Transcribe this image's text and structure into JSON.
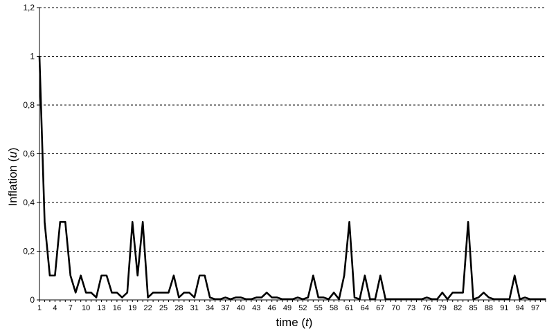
{
  "chart_data": {
    "type": "line",
    "title": "",
    "xlabel_prefix": "time (",
    "xlabel_var": "t",
    "xlabel_suffix": ")",
    "ylabel_prefix": "Inflation (",
    "ylabel_var": "u",
    "ylabel_suffix": ")",
    "ylim": [
      0,
      1.2
    ],
    "xlim": [
      1,
      99
    ],
    "y_ticks": [
      "0",
      "0,2",
      "0,4",
      "0,6",
      "0,8",
      "1",
      "1,2"
    ],
    "x_ticks": [
      "1",
      "4",
      "7",
      "10",
      "13",
      "16",
      "19",
      "22",
      "25",
      "28",
      "31",
      "34",
      "37",
      "40",
      "43",
      "46",
      "49",
      "52",
      "55",
      "58",
      "61",
      "64",
      "67",
      "70",
      "73",
      "76",
      "79",
      "82",
      "85",
      "88",
      "91",
      "94",
      "97"
    ],
    "grid": "horizontal-dashed",
    "legend": "none",
    "line_color": "#000000",
    "series": [
      {
        "x": [
          1,
          2,
          3,
          4,
          5,
          6,
          7,
          8,
          9,
          10,
          11,
          12,
          13,
          14,
          15,
          16,
          17,
          18,
          19,
          20,
          21,
          22,
          23,
          24,
          25,
          26,
          27,
          28,
          29,
          30,
          31,
          32,
          33,
          34,
          35,
          36,
          37,
          38,
          39,
          40,
          41,
          42,
          43,
          44,
          45,
          46,
          47,
          48,
          49,
          50,
          51,
          52,
          53,
          54,
          55,
          56,
          57,
          58,
          59,
          60,
          61,
          62,
          63,
          64,
          65,
          66,
          67,
          68,
          69,
          70,
          71,
          72,
          73,
          74,
          75,
          76,
          77,
          78,
          79,
          80,
          81,
          82,
          83,
          84,
          85,
          86,
          87,
          88,
          89,
          90,
          91,
          92,
          93,
          94,
          95,
          96,
          97,
          98,
          99
        ],
        "values": [
          1,
          0.32,
          0.1,
          0.1,
          0.32,
          0.32,
          0.1,
          0.03,
          0.1,
          0.03,
          0.03,
          0.01,
          0.1,
          0.1,
          0.03,
          0.03,
          0.01,
          0.03,
          0.32,
          0.1,
          0.32,
          0.01,
          0.03,
          0.03,
          0.03,
          0.03,
          0.1,
          0.01,
          0.03,
          0.03,
          0.01,
          0.1,
          0.1,
          0.01,
          0.003,
          0.003,
          0.01,
          0.003,
          0.01,
          0.01,
          0.003,
          0.003,
          0.01,
          0.01,
          0.03,
          0.01,
          0.01,
          0.003,
          0.003,
          0.003,
          0.01,
          0.003,
          0.01,
          0.1,
          0.01,
          0.01,
          0.003,
          0.03,
          0.003,
          0.1,
          0.32,
          0.01,
          0.003,
          0.1,
          0.003,
          0.003,
          0.1,
          0.003,
          0.003,
          0.003,
          0.003,
          0.003,
          0.003,
          0.003,
          0.003,
          0.01,
          0.003,
          0.003,
          0.03,
          0.003,
          0.03,
          0.03,
          0.03,
          0.32,
          0.003,
          0.01,
          0.03,
          0.01,
          0.003,
          0.003,
          0.003,
          0.003,
          0.1,
          0.003,
          0.01,
          0.003,
          0.003,
          0.003,
          0.003
        ]
      }
    ]
  }
}
